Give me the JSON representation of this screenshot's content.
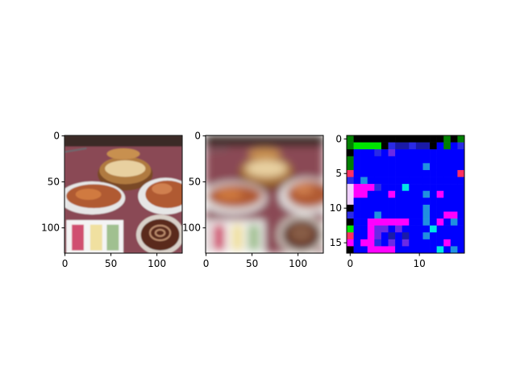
{
  "chart_data": [
    {
      "type": "image",
      "image": "photo of roast duck dishes on a red tablecloth (original resolution)",
      "colors": {
        "tablecloth": "#8a4a55",
        "steamer": "#b07a40",
        "soup": "#e8d0a0",
        "duck": "#b05a30",
        "plate": "#e6e6e6",
        "sauce": "#5a2a1a",
        "pink_strip": "#d05070",
        "yellow_strip": "#f0e0a0",
        "green_strip": "#a0c090"
      },
      "x_range": [
        0,
        127
      ],
      "y_range": [
        0,
        127
      ],
      "x_ticks": [
        0,
        50,
        100
      ],
      "y_ticks": [
        0,
        50,
        100
      ]
    },
    {
      "type": "image",
      "image": "blurred (reconstructed) version of the same photo",
      "x_range": [
        0,
        127
      ],
      "y_range": [
        0,
        127
      ],
      "x_ticks": [
        0,
        50,
        100
      ],
      "y_ticks": [
        0,
        50,
        100
      ]
    },
    {
      "type": "heatmap",
      "image": "17x17 false-color latent grid (mostly blue with magenta, cyan, green, black cells)",
      "rows": 17,
      "cols": 17,
      "x_ticks": [
        0,
        10
      ],
      "y_ticks": [
        0,
        5,
        10,
        15
      ],
      "palette": {
        "B": "#0000ff",
        "D": "#1a1aa8",
        "d": "#2a2ae6",
        "V": "#6a2ae6",
        "M": "#ff00ff",
        "P": "#d040f0",
        "C": "#00e6e6",
        "c": "#2090e0",
        "G": "#00e600",
        "g": "#008000",
        "K": "#000000",
        "W": "#f0d0ff",
        "R": "#ff3060"
      },
      "grid": [
        "gKKKKKKKKKKKKKgKg",
        "gGGGGKdDDdDDKBgBd",
        "KBBBdBVBBBBBBBBBB",
        "gBBBBBBBBBBBBBBBB",
        "gBBBBBBBBBBcBBBBB",
        "RBBBBBBBBBBBBBBBR",
        "dBcBBBBBBBBBBBBBB",
        "WMMMdBBBCBBBBBBBB",
        "WMMBBBMBBBBcBMBBB",
        "WBBBBBBBBBBBBBBBB",
        "KBBBBBBBBBBcBBBBB",
        "dBBBcBBBBBBcBBMMB",
        "KBBMMMMMMBBcBMBcB",
        "GBBMVVBVBBBBCBBBB",
        "RBBMVBDBDBBcBBBBB",
        "MBMMdBVBVBBBBBMBB",
        "KBBMMMMBBBBBBCBcB"
      ]
    }
  ]
}
